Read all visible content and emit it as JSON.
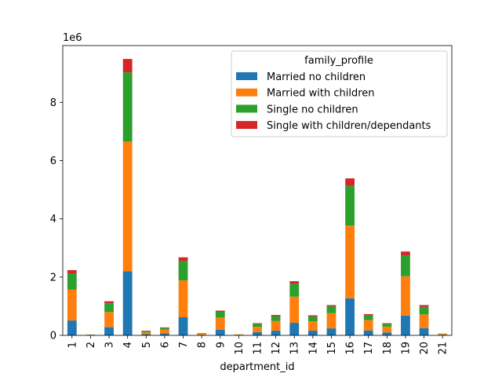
{
  "chart_data": {
    "type": "bar",
    "stacked": true,
    "xlabel": "department_id",
    "ylabel": "",
    "offset_text": "1e6",
    "categories": [
      "1",
      "2",
      "3",
      "4",
      "5",
      "6",
      "7",
      "8",
      "9",
      "10",
      "11",
      "12",
      "13",
      "14",
      "15",
      "16",
      "17",
      "18",
      "19",
      "20",
      "21"
    ],
    "ylim": [
      0,
      9950000
    ],
    "yticks": [
      0,
      2000000,
      4000000,
      6000000,
      8000000
    ],
    "ytick_labels": [
      "0",
      "2",
      "4",
      "6",
      "8"
    ],
    "grid": false,
    "legend": {
      "title": "family_profile",
      "placement": "top-right"
    },
    "series": [
      {
        "name": "Married no children",
        "color": "#1f77b4",
        "values": [
          510000,
          5000,
          280000,
          2200000,
          40000,
          65000,
          620000,
          15000,
          190000,
          6000,
          110000,
          160000,
          430000,
          160000,
          240000,
          1270000,
          170000,
          100000,
          680000,
          250000,
          15000
        ]
      },
      {
        "name": "Married with children",
        "color": "#ff7f0e",
        "values": [
          1060000,
          15000,
          520000,
          4450000,
          70000,
          130000,
          1270000,
          45000,
          420000,
          20000,
          180000,
          330000,
          900000,
          320000,
          520000,
          2500000,
          350000,
          200000,
          1350000,
          470000,
          30000
        ]
      },
      {
        "name": "Single no children",
        "color": "#2ca02c",
        "values": [
          560000,
          5000,
          300000,
          2380000,
          40000,
          65000,
          670000,
          15000,
          200000,
          5000,
          110000,
          170000,
          440000,
          170000,
          240000,
          1370000,
          170000,
          100000,
          710000,
          260000,
          10000
        ]
      },
      {
        "name": "Single with children/dependants",
        "color": "#d62728",
        "values": [
          110000,
          3000,
          70000,
          460000,
          10000,
          15000,
          120000,
          5000,
          40000,
          2000,
          20000,
          40000,
          90000,
          40000,
          40000,
          250000,
          40000,
          20000,
          140000,
          60000,
          5000
        ]
      }
    ]
  }
}
